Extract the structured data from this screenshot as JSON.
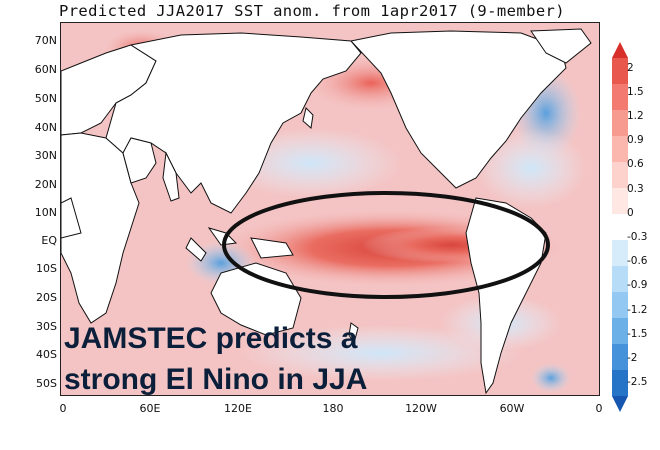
{
  "title": "Predicted JJA2017 SST anom. from 1apr2017 (9-member)",
  "annotation": [
    "JAMSTEC predicts a",
    "strong El Nino in JJA"
  ],
  "lat_labels": [
    "70N",
    "60N",
    "50N",
    "40N",
    "30N",
    "20N",
    "10N",
    "EQ",
    "10S",
    "20S",
    "30S",
    "40S",
    "50S"
  ],
  "lon_labels": [
    "0",
    "60E",
    "120E",
    "180",
    "120W",
    "60W",
    "0"
  ],
  "colorbar": {
    "labels": [
      "2",
      "1.5",
      "1.2",
      "0.9",
      "0.6",
      "0.3",
      "0",
      "-0.3",
      "-0.6",
      "-0.9",
      "-1.2",
      "-1.5",
      "-2",
      "-2.5"
    ],
    "colors": [
      "#d7302a",
      "#e8584c",
      "#f27a70",
      "#f79a90",
      "#fbb7ae",
      "#fdd2cc",
      "#ffe8e4",
      "#ffffff",
      "#d6ecfb",
      "#b6dcf7",
      "#92c8f1",
      "#6cb0e8",
      "#4592da",
      "#2574c8",
      "#1656b0"
    ]
  },
  "colors": {
    "background_anom": "#f4c4c4",
    "land": "#ffffff",
    "border": "#222222",
    "ellipse": "#111111",
    "annotation_text": "#0b1f3a"
  }
}
